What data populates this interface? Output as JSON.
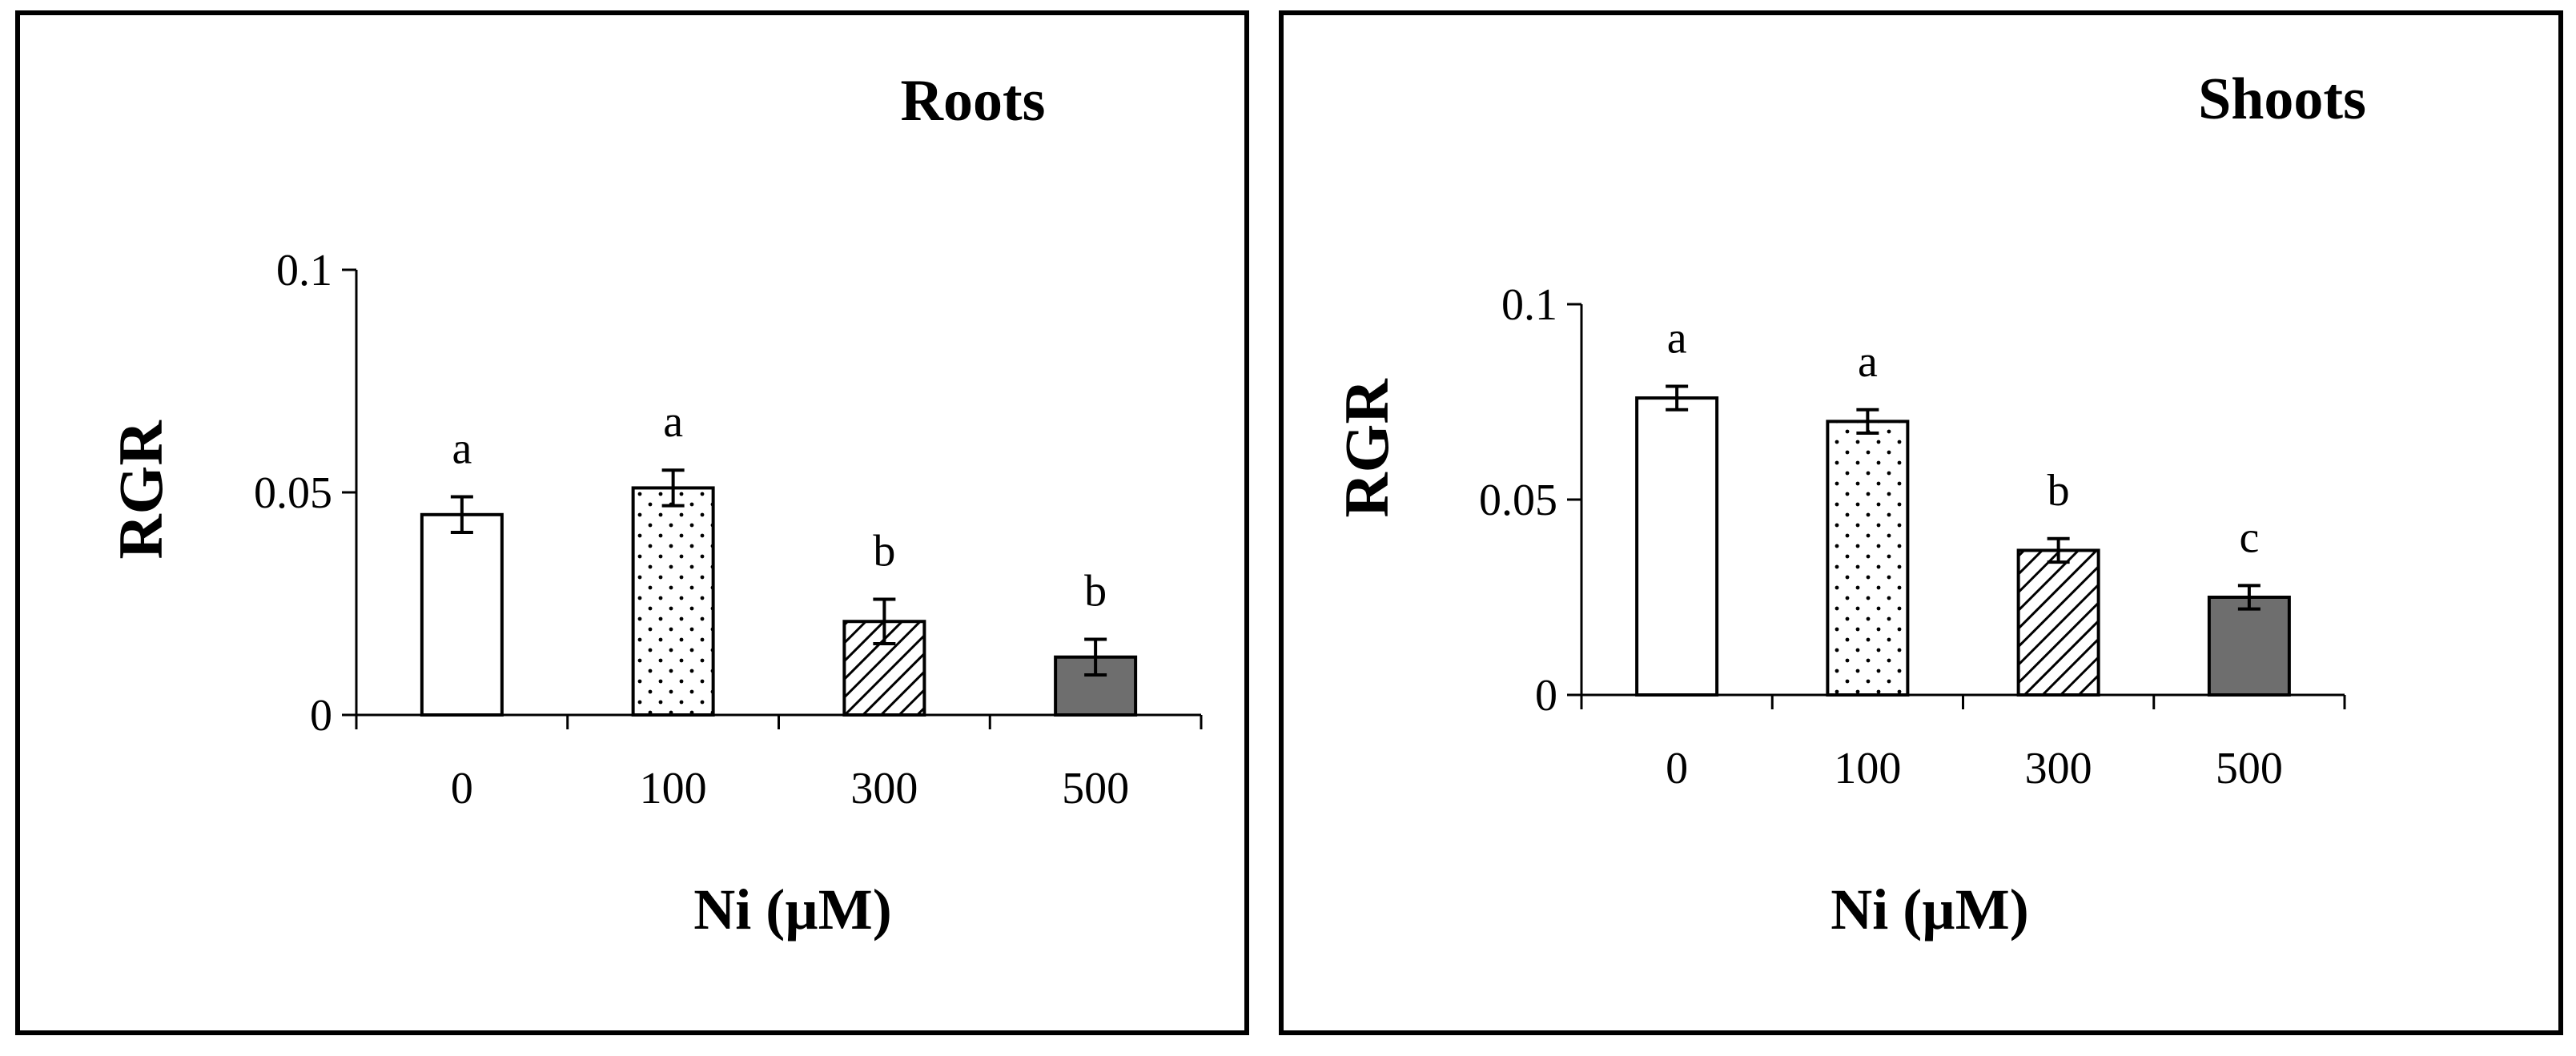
{
  "chart_data": [
    {
      "type": "bar",
      "title": "Roots",
      "xlabel": "Ni (µM)",
      "ylabel": "RGR",
      "categories": [
        "0",
        "100",
        "300",
        "500"
      ],
      "values": [
        0.045,
        0.051,
        0.021,
        0.013
      ],
      "errors": [
        0.004,
        0.004,
        0.005,
        0.004
      ],
      "letters": [
        "a",
        "a",
        "b",
        "b"
      ],
      "fills": [
        "none",
        "dots",
        "hatch",
        "solid-gray"
      ],
      "yticks": [
        0,
        0.05,
        0.1
      ],
      "ytick_labels": [
        "0",
        "0.05",
        "0.1"
      ],
      "ylim": [
        0,
        0.1
      ],
      "grid": false,
      "legend": "none"
    },
    {
      "type": "bar",
      "title": "Shoots",
      "xlabel": "Ni (µM)",
      "ylabel": "RGR",
      "categories": [
        "0",
        "100",
        "300",
        "500"
      ],
      "values": [
        0.076,
        0.07,
        0.037,
        0.025
      ],
      "errors": [
        0.003,
        0.003,
        0.003,
        0.003
      ],
      "letters": [
        "a",
        "a",
        "b",
        "c"
      ],
      "fills": [
        "none",
        "dots",
        "hatch",
        "solid-gray"
      ],
      "yticks": [
        0,
        0.05,
        0.1
      ],
      "ytick_labels": [
        "0",
        "0.05",
        "0.1"
      ],
      "ylim": [
        0,
        0.1
      ],
      "grid": false,
      "legend": "none"
    }
  ],
  "colors": {
    "border": "#000000",
    "bar_outline": "#000000",
    "axis": "#000000",
    "solid_bar": "#6e6e6e",
    "background": "#ffffff"
  }
}
